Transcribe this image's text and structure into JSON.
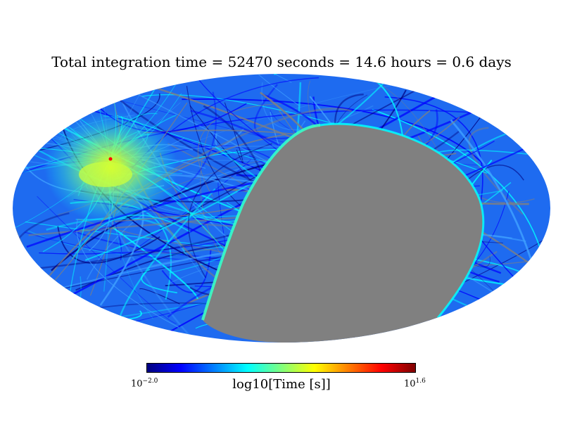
{
  "title": "Total integration time = 52470 seconds = 14.6 hours = 0.6 days",
  "map": {
    "projection": "mollweide",
    "unobserved_color": "#808080",
    "hotspot_color": "#ff0000"
  },
  "colorbar": {
    "label": "log10[Time [s]]",
    "min_base": "10",
    "min_exp": "−2.0",
    "max_base": "10",
    "max_exp": "1.6",
    "colormap": [
      "#00007f",
      "#0000ff",
      "#007fff",
      "#00ffff",
      "#7fff7f",
      "#ffff00",
      "#ff7f00",
      "#ff0000",
      "#7f0000"
    ]
  }
}
